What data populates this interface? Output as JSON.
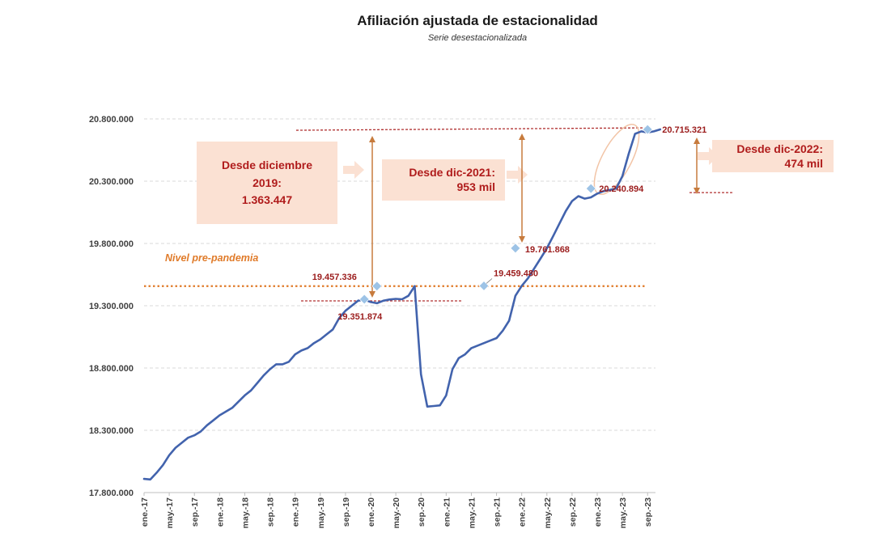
{
  "chart_data": {
    "type": "line",
    "title": "Afiliación ajustada de estacionalidad",
    "subtitle": "Serie desestacionalizada",
    "ylim": [
      17800000,
      20800000
    ],
    "y_ticks": [
      "17.800.000",
      "18.300.000",
      "18.800.000",
      "19.300.000",
      "19.800.000",
      "20.300.000",
      "20.800.000"
    ],
    "x_ticks": [
      "ene.-17",
      "may.-17",
      "sep.-17",
      "ene.-18",
      "may.-18",
      "sep.-18",
      "ene.-19",
      "may.-19",
      "sep.-19",
      "ene.-20",
      "may.-20",
      "sep.-20",
      "ene.-21",
      "may.-21",
      "sep.-21",
      "ene.-22",
      "may.-22",
      "sep.-22",
      "ene.-23",
      "may.-23",
      "sep.-23"
    ],
    "grid": true,
    "series": [
      {
        "color": "#4263ad",
        "start": "2017-01",
        "values": [
          17910000,
          17905000,
          17960000,
          18020000,
          18100000,
          18160000,
          18200000,
          18240000,
          18260000,
          18290000,
          18340000,
          18380000,
          18420000,
          18450000,
          18480000,
          18530000,
          18580000,
          18620000,
          18680000,
          18740000,
          18790000,
          18830000,
          18830000,
          18850000,
          18910000,
          18940000,
          18960000,
          19000000,
          19030000,
          19070000,
          19110000,
          19200000,
          19260000,
          19300000,
          19340000,
          19350000,
          19330000,
          19320000,
          19340000,
          19350000,
          19355000,
          19351874,
          19380000,
          19457336,
          18750000,
          18490000,
          18495000,
          18500000,
          18580000,
          18790000,
          18880000,
          18910000,
          18960000,
          18980000,
          19000000,
          19020000,
          19040000,
          19100000,
          19180000,
          19380000,
          19459480,
          19520000,
          19600000,
          19680000,
          19761868,
          19860000,
          19960000,
          20060000,
          20140000,
          20180000,
          20160000,
          20170000,
          20200000,
          20220000,
          20230000,
          20240894,
          20340000,
          20520000,
          20680000,
          20700000,
          20690000,
          20700000,
          20715321
        ]
      }
    ],
    "highlighted_points": [
      {
        "date": "2019-12",
        "value": 19351874,
        "label": "19.351.874"
      },
      {
        "date": "2020-02",
        "value": 19457336,
        "label": "19.457.336"
      },
      {
        "date": "2021-07",
        "value": 19459480,
        "label": "19.459.480"
      },
      {
        "date": "2021-12",
        "value": 19761868,
        "label": "19.761.868"
      },
      {
        "date": "2022-12",
        "value": 20240894,
        "label": "20.240.894"
      },
      {
        "date": "2023-09",
        "value": 20715321,
        "label": "20.715.321"
      }
    ],
    "reference_line": {
      "value": 19457336,
      "label": "Nivel pre-pandemia",
      "color": "#e07b2a"
    },
    "annotations": [
      {
        "lines": [
          "Desde diciembre",
          "2019:",
          "1.363.447"
        ]
      },
      {
        "lines": [
          "Desde dic-2021:",
          "953 mil"
        ]
      },
      {
        "lines": [
          "Desde dic-2022:",
          "474 mil"
        ]
      }
    ],
    "colors": {
      "series": "#4263ad",
      "marker": "#9dc3e6",
      "prepandemic": "#e07b2a",
      "arrow": "#c77b3d",
      "box_fill": "#fbe1d3",
      "annotation_text": "#b01c1c",
      "dashed_red": "#b03030"
    }
  }
}
